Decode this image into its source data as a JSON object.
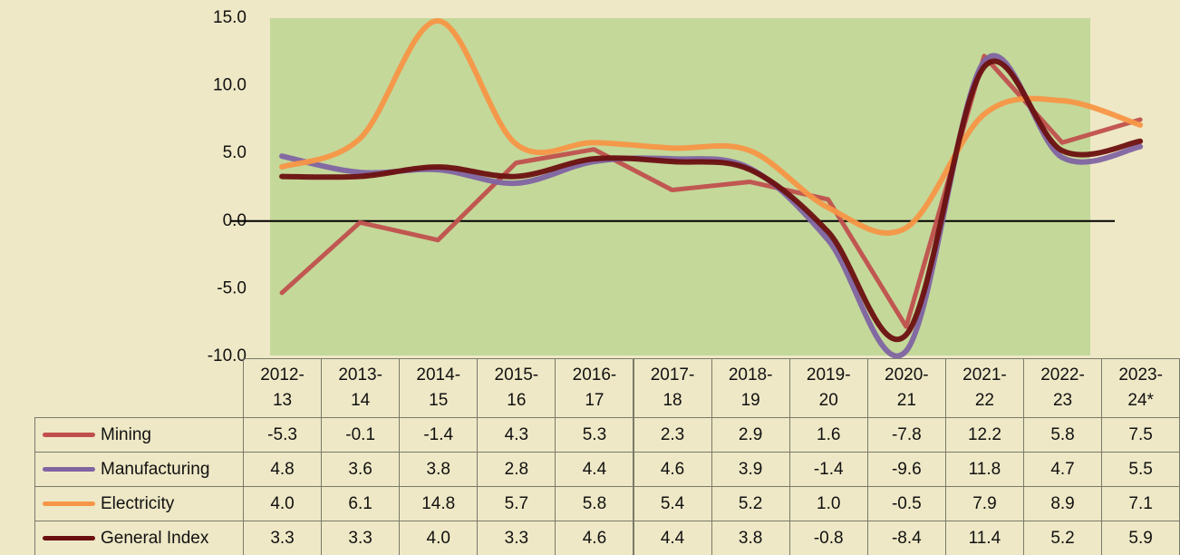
{
  "chart_data": {
    "type": "line",
    "categories": [
      "2012-13",
      "2013-14",
      "2014-15",
      "2015-16",
      "2016-17",
      "2017-18",
      "2018-19",
      "2019-20",
      "2020-21",
      "2021-22",
      "2022-23",
      "2023-24*"
    ],
    "ylim": [
      -10,
      15
    ],
    "yticks": [
      {
        "value": -10,
        "label": "-10.0"
      },
      {
        "value": -5,
        "label": "-5.0"
      },
      {
        "value": 0,
        "label": "0.0"
      },
      {
        "value": 5,
        "label": "5.0"
      },
      {
        "value": 10,
        "label": "10.0"
      },
      {
        "value": 15,
        "label": "15.0"
      }
    ],
    "series": [
      {
        "name": "Mining",
        "color": "#c0504d",
        "smooth": false,
        "values": [
          -5.3,
          -0.1,
          -1.4,
          4.3,
          5.3,
          2.3,
          2.9,
          1.6,
          -7.8,
          12.2,
          5.8,
          7.5
        ],
        "value_labels": [
          "-5.3",
          "-0.1",
          "-1.4",
          "4.3",
          "5.3",
          "2.3",
          "2.9",
          "1.6",
          "-7.8",
          "12.2",
          "5.8",
          "7.5"
        ]
      },
      {
        "name": "Manufacturing",
        "color": "#8064a2",
        "smooth": true,
        "values": [
          4.8,
          3.6,
          3.8,
          2.8,
          4.4,
          4.6,
          3.9,
          -1.4,
          -9.6,
          11.8,
          4.7,
          5.5
        ],
        "value_labels": [
          "4.8",
          "3.6",
          "3.8",
          "2.8",
          "4.4",
          "4.6",
          "3.9",
          "-1.4",
          "-9.6",
          "11.8",
          "4.7",
          "5.5"
        ]
      },
      {
        "name": "Electricity",
        "color": "#f79646",
        "smooth": true,
        "values": [
          4.0,
          6.1,
          14.8,
          5.7,
          5.8,
          5.4,
          5.2,
          1.0,
          -0.5,
          7.9,
          8.9,
          7.1
        ],
        "value_labels": [
          "4.0",
          "6.1",
          "14.8",
          "5.7",
          "5.8",
          "5.4",
          "5.2",
          "1.0",
          "-0.5",
          "7.9",
          "8.9",
          "7.1"
        ]
      },
      {
        "name": "General Index",
        "color": "#6b1010",
        "smooth": true,
        "values": [
          3.3,
          3.3,
          4.0,
          3.3,
          4.6,
          4.4,
          3.8,
          -0.8,
          -8.4,
          11.4,
          5.2,
          5.9
        ],
        "value_labels": [
          "3.3",
          "3.3",
          "4.0",
          "3.3",
          "4.6",
          "4.4",
          "3.8",
          "-0.8",
          "-8.4",
          "11.4",
          "5.2",
          "5.9"
        ]
      }
    ]
  }
}
